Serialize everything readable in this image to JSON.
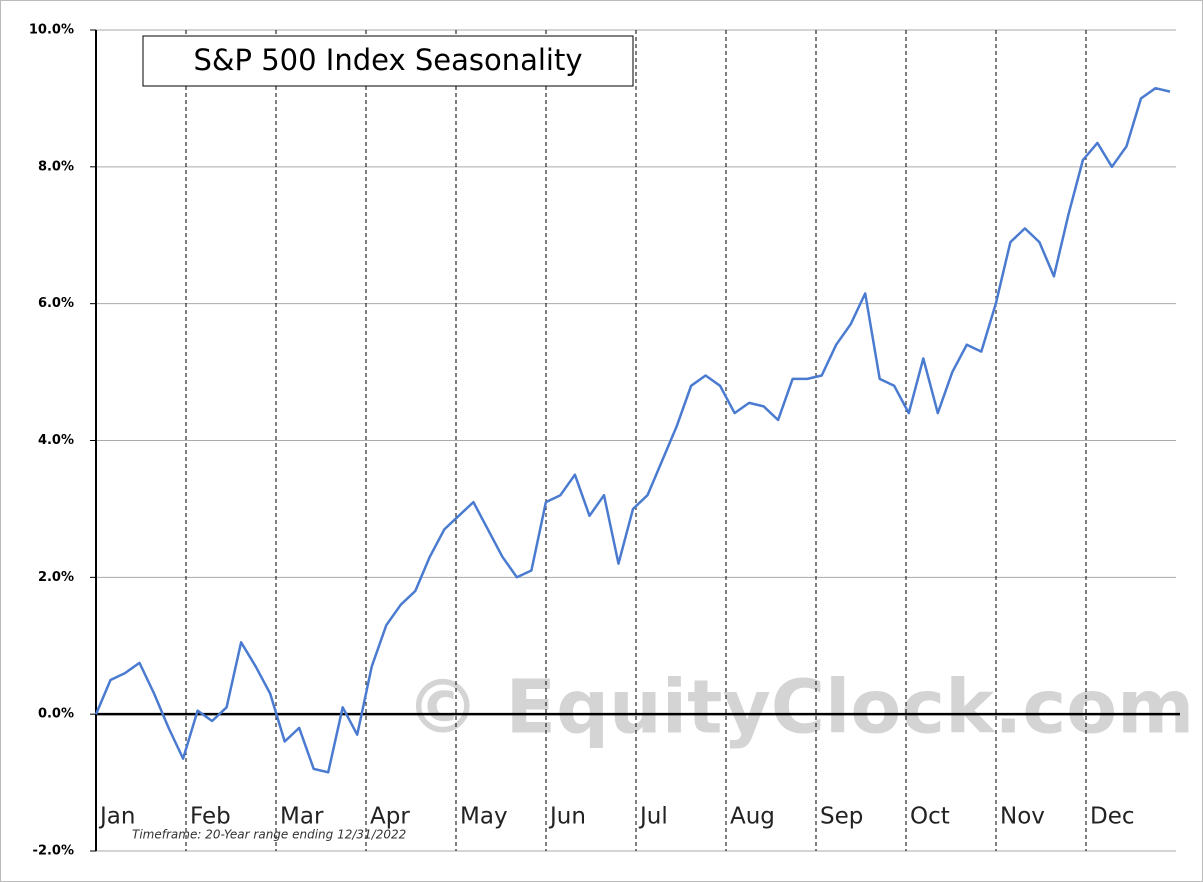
{
  "chart_data": {
    "type": "line",
    "title": "S&P 500 Index Seasonality",
    "watermark": "© EquityClock.com",
    "note": "Timeframe:  20-Year range ending 12/31/2022",
    "months": [
      "Jan",
      "Feb",
      "Mar",
      "Apr",
      "May",
      "Jun",
      "Jul",
      "Aug",
      "Sep",
      "Oct",
      "Nov",
      "Dec"
    ],
    "series": [
      {
        "color": "#4a7bd0",
        "values": [
          0.0,
          0.5,
          0.6,
          0.75,
          0.3,
          -0.2,
          -0.65,
          0.05,
          -0.1,
          0.1,
          1.05,
          0.7,
          0.3,
          -0.4,
          -0.2,
          -0.8,
          -0.85,
          0.1,
          -0.3,
          0.7,
          1.3,
          1.6,
          1.8,
          2.3,
          2.7,
          2.9,
          3.1,
          2.7,
          2.3,
          2.0,
          2.1,
          3.1,
          3.2,
          3.5,
          2.9,
          3.2,
          2.2,
          3.0,
          3.2,
          3.7,
          4.2,
          4.8,
          4.95,
          4.8,
          4.4,
          4.55,
          4.5,
          4.3,
          4.9,
          4.9,
          4.95,
          5.4,
          5.7,
          6.15,
          4.9,
          4.8,
          4.4,
          5.2,
          4.4,
          5.0,
          5.4,
          5.3,
          6.0,
          6.9,
          7.1,
          6.9,
          6.4,
          7.3,
          8.1,
          8.35,
          8.0,
          8.3,
          9.0,
          9.15,
          9.1
        ]
      }
    ],
    "ylim": [
      -2,
      10
    ],
    "yticks": [
      {
        "value": -2,
        "label": "-2.0%"
      },
      {
        "value": 0,
        "label": "0.0%"
      },
      {
        "value": 2,
        "label": "2.0%"
      },
      {
        "value": 4,
        "label": "4.0%"
      },
      {
        "value": 6,
        "label": "6.0%"
      },
      {
        "value": 8,
        "label": "8.0%"
      },
      {
        "value": 10,
        "label": "10.0%"
      }
    ],
    "grid": true
  }
}
